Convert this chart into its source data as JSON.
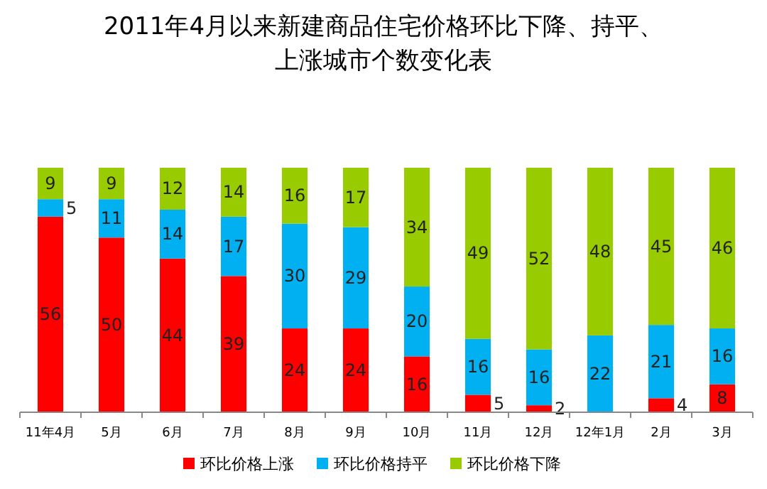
{
  "chart_data": {
    "type": "bar",
    "stacked": true,
    "title": "2011年4月以来新建商品住宅价格环比下降、持平、上涨城市个数变化表",
    "categories": [
      "11年4月",
      "5月",
      "6月",
      "7月",
      "8月",
      "9月",
      "10月",
      "11月",
      "12月",
      "12年1月",
      "2月",
      "3月"
    ],
    "legend": "bottom",
    "series": [
      {
        "name": "环比价格上涨",
        "color": "#ff0000",
        "values": [
          56,
          50,
          44,
          39,
          24,
          24,
          16,
          5,
          2,
          0,
          4,
          8
        ],
        "value_labels": [
          "56",
          "50",
          "44",
          "39",
          "24",
          "24",
          "16",
          "5",
          "2",
          null,
          "4",
          "8"
        ]
      },
      {
        "name": "环比价格持平",
        "color": "#00b0f0",
        "values": [
          5,
          11,
          14,
          17,
          30,
          29,
          20,
          16,
          16,
          22,
          21,
          16
        ],
        "value_labels": [
          "5",
          "11",
          "14",
          "17",
          "30",
          "29",
          "20",
          "16",
          "16",
          "22",
          "21",
          "16"
        ]
      },
      {
        "name": "环比价格下降",
        "color": "#99cc00",
        "values": [
          9,
          9,
          12,
          14,
          16,
          17,
          34,
          49,
          52,
          48,
          45,
          46
        ],
        "value_labels": [
          "9",
          "9",
          "12",
          "14",
          "16",
          "17",
          "34",
          "49",
          "52",
          "48",
          "45",
          "46"
        ]
      }
    ]
  }
}
